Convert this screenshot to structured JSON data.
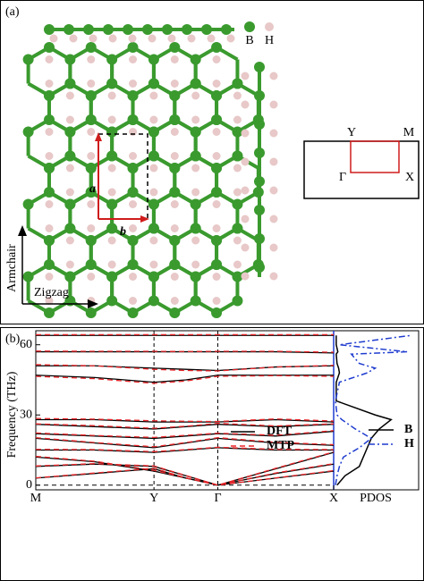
{
  "panel_a": {
    "label": "(a)",
    "atom_legend": [
      "B",
      "H"
    ],
    "vectors": [
      "a",
      "b"
    ],
    "axes": [
      "Armchair",
      "Zigzag"
    ],
    "bz_labels": [
      "Y",
      "M",
      "Γ",
      "X"
    ]
  },
  "chart_data": {
    "type": "line",
    "panel_label": "(b)",
    "ylabel": "Frequency (THz)",
    "ylim": [
      -2,
      66
    ],
    "yticks": [
      0,
      30,
      60
    ],
    "xlim": [
      0,
      2.52
    ],
    "xticks": [
      {
        "value": 0,
        "label": "M"
      },
      {
        "value": 1,
        "label": "Y"
      },
      {
        "value": 1.54,
        "label": "Γ"
      },
      {
        "value": 2.52,
        "label": "X"
      }
    ],
    "x": [
      0,
      0.5,
      1,
      1.27,
      1.54,
      2.03,
      2.52
    ],
    "series": [
      {
        "name": "DFT",
        "color": "#000000",
        "dash": "solid",
        "bands": [
          [
            64,
            64,
            64,
            64,
            64,
            64,
            64
          ],
          [
            57,
            57,
            57,
            57,
            57,
            57,
            56.5
          ],
          [
            51,
            51,
            50,
            49.5,
            49,
            50.5,
            51
          ],
          [
            47,
            46,
            44,
            45,
            47,
            47,
            47
          ],
          [
            28,
            28,
            27,
            27,
            27,
            28,
            27
          ],
          [
            26,
            25,
            24,
            25,
            26,
            25,
            26
          ],
          [
            22,
            21,
            20,
            21,
            22,
            21,
            23
          ],
          [
            20,
            18,
            16,
            18,
            20,
            18,
            17
          ],
          [
            15,
            15,
            14,
            15,
            16,
            15,
            15
          ],
          [
            12,
            10,
            6,
            3,
            0,
            7,
            14
          ],
          [
            8,
            9,
            8,
            4,
            0,
            5,
            9
          ],
          [
            3,
            5,
            7,
            3,
            0,
            3,
            6
          ]
        ]
      },
      {
        "name": "MTP",
        "color": "#e8262a",
        "dash": "dashed",
        "bands": [
          [
            64.3,
            64.3,
            64.3,
            64.3,
            64.3,
            64.3,
            64.3
          ],
          [
            57.3,
            57.2,
            57.2,
            57.1,
            57.2,
            57.2,
            56.8
          ],
          [
            51.5,
            51,
            49.5,
            49,
            48.8,
            50.5,
            51.2
          ],
          [
            46.5,
            45.5,
            43.5,
            44.5,
            46.5,
            46.8,
            46.5
          ],
          [
            28.5,
            28.2,
            27.5,
            27.3,
            27.2,
            28.3,
            27.4
          ],
          [
            26.2,
            25.4,
            24.3,
            25.2,
            26.4,
            25.3,
            26.2
          ],
          [
            22.3,
            21.2,
            20.4,
            21.3,
            22.2,
            21.3,
            23.3
          ],
          [
            20.3,
            18.2,
            16.4,
            18.2,
            20.3,
            18.3,
            17.3
          ],
          [
            15.3,
            15.2,
            14.3,
            15.2,
            16.2,
            15.3,
            15.2
          ],
          [
            12.3,
            10.2,
            6.3,
            3.1,
            0,
            7.2,
            14.2
          ],
          [
            8.2,
            9.2,
            8.2,
            4.1,
            0,
            5.2,
            9.2
          ],
          [
            3.1,
            5.2,
            7.2,
            3.1,
            0,
            3.1,
            6.2
          ]
        ]
      }
    ],
    "pdos": {
      "xlabel": "PDOS",
      "xlim": [
        0,
        1
      ],
      "frequencies": [
        0,
        4,
        8,
        12,
        16,
        20,
        24,
        28,
        30,
        36,
        44,
        48,
        50,
        52,
        56,
        57,
        60,
        64
      ],
      "series": [
        {
          "name": "B",
          "color": "#000000",
          "dash": "solid",
          "values": [
            0.02,
            0.12,
            0.3,
            0.35,
            0.4,
            0.45,
            0.55,
            0.7,
            0.5,
            0.01,
            0.01,
            0.05,
            0.04,
            0.02,
            0.01,
            0.03,
            0.01,
            0.01
          ]
        },
        {
          "name": "H",
          "color": "#1f3ccf",
          "dash": "dashdot",
          "values": [
            0.0,
            0.02,
            0.05,
            0.1,
            0.3,
            0.45,
            0.25,
            0.08,
            0.02,
            0.0,
            0.05,
            0.4,
            0.5,
            0.3,
            0.2,
            0.9,
            0.05,
            0.95
          ]
        }
      ]
    }
  }
}
